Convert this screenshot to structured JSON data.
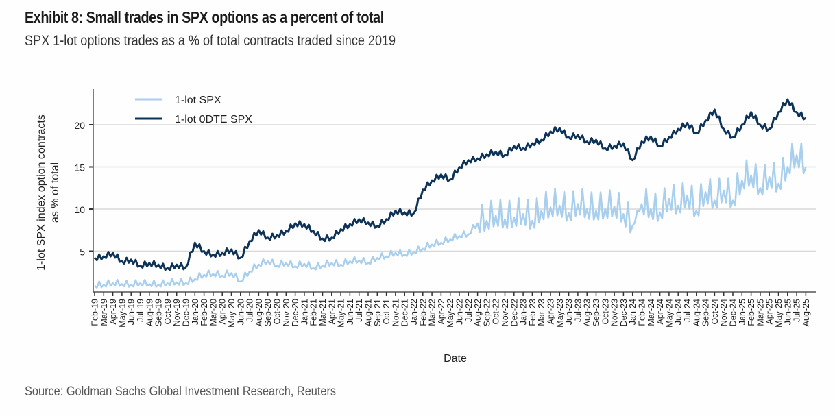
{
  "header": {
    "title": "Exhibit 8: Small trades in SPX options as a percent of total",
    "subtitle": "SPX 1-lot options trades as a % of total contracts traded since 2019"
  },
  "footer": {
    "source": "Source: Goldman Sachs Global Investment Research, Reuters"
  },
  "chart_data": {
    "type": "line",
    "title": "Exhibit 8: Small trades in SPX options as a percent of total",
    "subtitle": "SPX 1-lot options trades as a % of total contracts traded since 2019",
    "xlabel": "Date",
    "ylabel_lines": [
      "1-lot SPX index option contracts",
      "as % of total"
    ],
    "ylabel": "1-lot SPX index option contracts as % of total",
    "ylim": [
      0,
      24
    ],
    "yticks": [
      5,
      10,
      15,
      20
    ],
    "grid": true,
    "legend_position": "top-left",
    "x": [
      "Feb-19",
      "Mar-19",
      "Apr-19",
      "May-19",
      "Jun-19",
      "Jul-19",
      "Aug-19",
      "Sep-19",
      "Oct-19",
      "Nov-19",
      "Dec-19",
      "Jan-20",
      "Feb-20",
      "Mar-20",
      "Apr-20",
      "May-20",
      "Jun-20",
      "Jul-20",
      "Aug-20",
      "Sep-20",
      "Oct-20",
      "Nov-20",
      "Dec-20",
      "Jan-21",
      "Feb-21",
      "Mar-21",
      "Apr-21",
      "May-21",
      "Jun-21",
      "Jul-21",
      "Aug-21",
      "Sep-21",
      "Oct-21",
      "Nov-21",
      "Dec-21",
      "Jan-22",
      "Feb-22",
      "Mar-22",
      "Apr-22",
      "May-22",
      "Jun-22",
      "Jul-22",
      "Aug-22",
      "Sep-22",
      "Oct-22",
      "Nov-22",
      "Dec-22",
      "Jan-23",
      "Feb-23",
      "Mar-23",
      "Apr-23",
      "May-23",
      "Jun-23",
      "Jul-23",
      "Aug-23",
      "Sep-23",
      "Oct-23",
      "Nov-23",
      "Dec-23",
      "Jan-24",
      "Feb-24",
      "Mar-24",
      "Apr-24",
      "May-24",
      "Jun-24",
      "Jul-24",
      "Aug-24",
      "Sep-24",
      "Oct-24",
      "Nov-24",
      "Dec-24",
      "Jan-25",
      "Feb-25",
      "Mar-25",
      "Apr-25",
      "May-25",
      "Jun-25",
      "Jul-25",
      "Aug-25"
    ],
    "series": [
      {
        "name": "1-lot SPX",
        "color": "#a9cfee",
        "values": [
          0.9,
          1.0,
          1.2,
          1.1,
          1.0,
          1.2,
          1.1,
          1.0,
          1.2,
          1.3,
          1.2,
          1.7,
          2.2,
          2.3,
          2.1,
          2.4,
          1.4,
          2.6,
          3.4,
          3.8,
          3.3,
          3.6,
          3.2,
          3.5,
          3.0,
          3.3,
          3.6,
          3.4,
          3.8,
          3.9,
          3.6,
          4.2,
          4.4,
          4.8,
          4.6,
          4.9,
          5.3,
          5.8,
          6.0,
          6.4,
          6.8,
          7.0,
          8.3,
          8.6,
          9.2,
          8.8,
          9.0,
          9.4,
          8.6,
          9.8,
          10.2,
          10.4,
          9.5,
          10.6,
          10.0,
          9.8,
          10.0,
          10.3,
          9.4,
          8.0,
          10.6,
          10.0,
          9.6,
          11.2,
          10.4,
          11.6,
          9.8,
          12.0,
          11.0,
          12.2,
          11.0,
          13.4,
          14.0,
          12.5,
          13.8,
          13.0,
          15.0,
          16.4,
          15.0
        ]
      },
      {
        "name": "1-lot 0DTE SPX",
        "color": "#0d3358",
        "values": [
          4.2,
          4.4,
          4.8,
          3.8,
          4.0,
          3.3,
          3.6,
          3.4,
          3.0,
          3.4,
          3.1,
          6.0,
          5.0,
          4.6,
          4.8,
          5.2,
          4.2,
          6.2,
          7.5,
          6.6,
          6.9,
          7.4,
          8.3,
          8.2,
          7.4,
          6.5,
          6.6,
          7.6,
          8.2,
          8.8,
          8.4,
          8.0,
          8.8,
          9.8,
          9.6,
          9.5,
          12.3,
          13.4,
          14.1,
          13.5,
          15.0,
          15.8,
          16.0,
          16.5,
          16.8,
          16.4,
          17.5,
          17.2,
          17.8,
          18.2,
          19.2,
          19.6,
          18.5,
          18.8,
          18.0,
          18.2,
          17.2,
          17.5,
          17.8,
          15.8,
          18.0,
          18.6,
          17.5,
          18.5,
          19.5,
          20.2,
          19.0,
          20.5,
          21.8,
          19.5,
          18.5,
          20.0,
          21.5,
          20.0,
          19.5,
          21.5,
          23.0,
          21.5,
          20.8
        ]
      }
    ]
  }
}
